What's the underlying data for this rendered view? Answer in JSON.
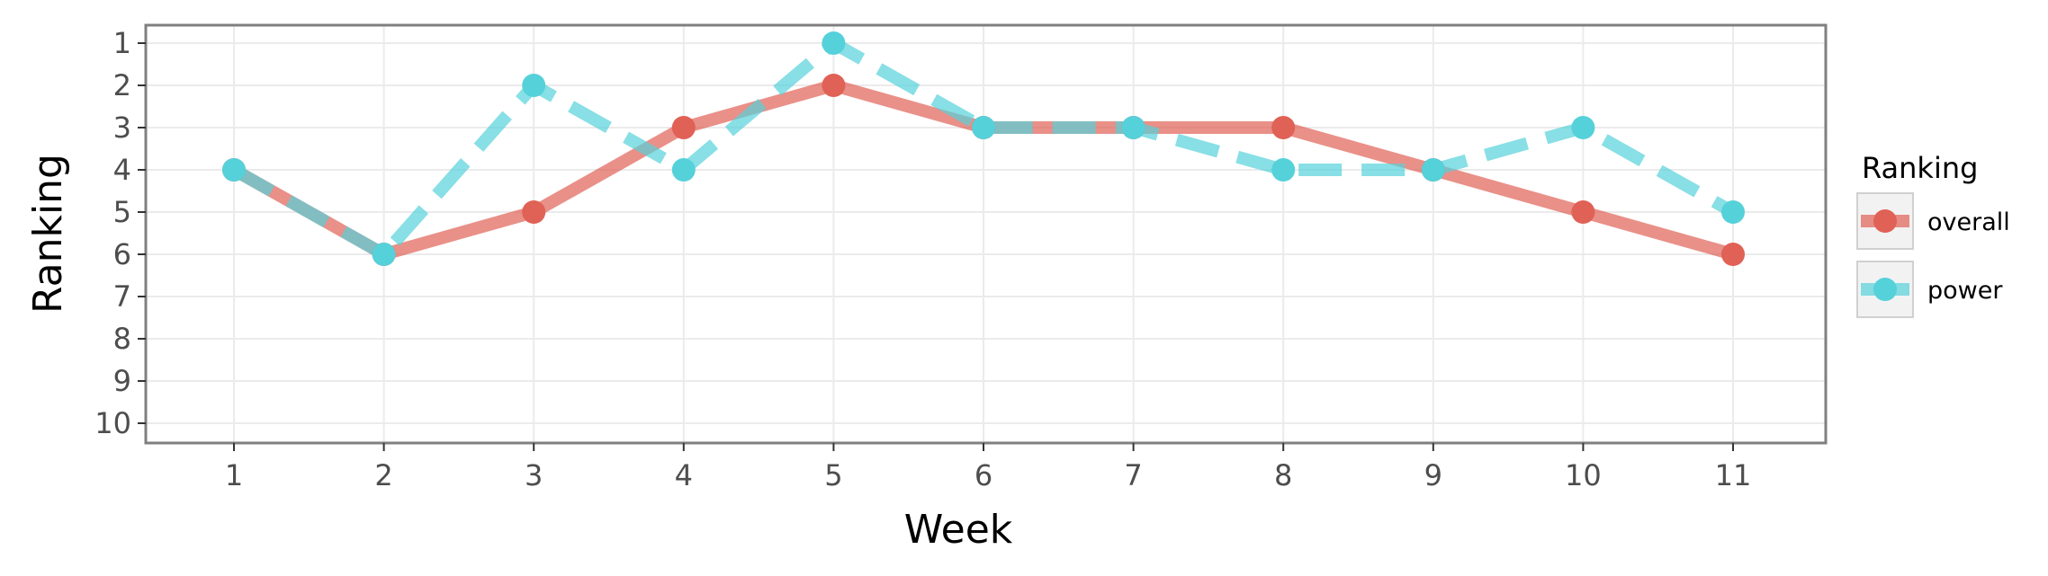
{
  "chart_data": {
    "type": "line",
    "xlabel": "Week",
    "ylabel": "Ranking",
    "x": [
      1,
      2,
      3,
      4,
      5,
      6,
      7,
      8,
      9,
      10,
      11
    ],
    "x_ticks": [
      "1",
      "2",
      "3",
      "4",
      "5",
      "6",
      "7",
      "8",
      "9",
      "10",
      "11"
    ],
    "y_ticks": [
      "1",
      "2",
      "3",
      "4",
      "5",
      "6",
      "7",
      "8",
      "9",
      "10"
    ],
    "ylim": [
      1,
      10
    ],
    "y_reversed": true,
    "grid": true,
    "legend": {
      "title": "Ranking",
      "placement": "right"
    },
    "series": [
      {
        "name": "overall",
        "color": "#E06155",
        "line_style": "solid",
        "values": [
          4,
          6,
          5,
          3,
          2,
          3,
          3,
          3,
          4,
          5,
          6
        ]
      },
      {
        "name": "power",
        "color": "#55D1DA",
        "line_style": "dashed",
        "values": [
          4,
          6,
          2,
          4,
          1,
          3,
          3,
          4,
          4,
          3,
          5
        ]
      }
    ]
  }
}
